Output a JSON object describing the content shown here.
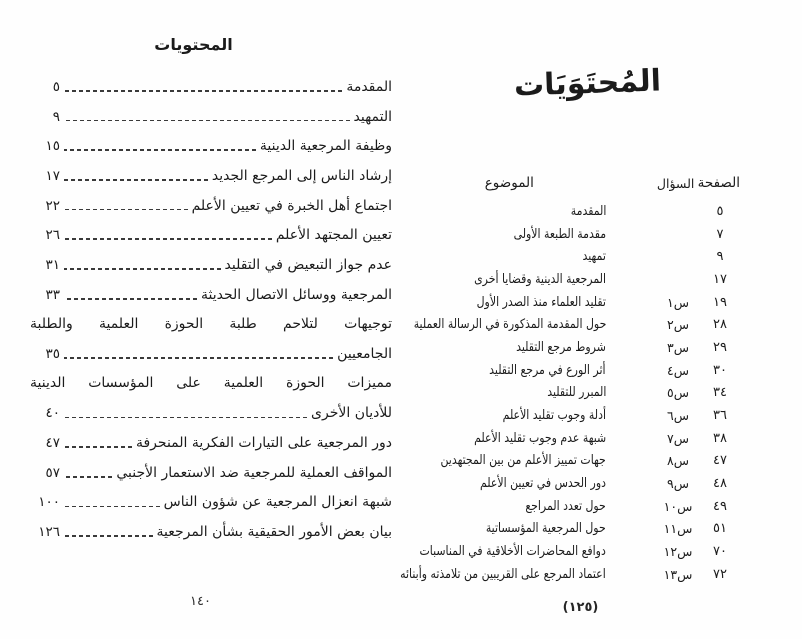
{
  "page_left": {
    "title": "المحتويات",
    "entries": [
      {
        "text": "المقدمة",
        "page": "٥",
        "justify": false
      },
      {
        "text": "التمهيد",
        "page": "٩",
        "justify": false
      },
      {
        "text": "وظيفة المرجعية الدينية",
        "page": "١٥",
        "justify": false
      },
      {
        "text": "إرشاد الناس إلى المرجع الجديد",
        "page": "١٧",
        "justify": false
      },
      {
        "text": "اجتماع أهل الخبرة في تعيين الأعلم",
        "page": "٢٢",
        "justify": false
      },
      {
        "text": "تعيين المجتهد الأعلم",
        "page": "٢٦",
        "justify": false
      },
      {
        "text": "عدم جواز التبعيض في التقليد",
        "page": "٣١",
        "justify": false
      },
      {
        "text": "المرجعية ووسائل الاتصال الحديثة",
        "page": "٣٣",
        "justify": false
      },
      {
        "text": "توجيهات لتلاحم طلبة الحوزة العلمية والطلبة",
        "page": "",
        "justify": true
      },
      {
        "text": "الجامعيين",
        "page": "٣٥",
        "justify": false
      },
      {
        "text": "مميزات الحوزة العلمية على المؤسسات الدينية",
        "page": "",
        "justify": true
      },
      {
        "text": "للأديان الأخرى",
        "page": "٤٠",
        "justify": false
      },
      {
        "text": "دور المرجعية على التيارات الفكرية المنحرفة",
        "page": "٤٧",
        "justify": false
      },
      {
        "text": "المواقف العملية للمرجعية ضد الاستعمار الأجنبي",
        "page": "٥٧",
        "justify": false
      },
      {
        "text": "شبهة انعزال المرجعية عن شؤون الناس",
        "page": "١٠٠",
        "justify": false
      },
      {
        "text": "بيان بعض الأمور الحقيقية بشأن المرجعية",
        "page": "١٢٦",
        "justify": false
      }
    ],
    "folio": "١٤٠"
  },
  "page_right": {
    "title": "المُحتَوَيَات",
    "table": {
      "headers": {
        "page": "الصفحة",
        "question": "السؤال",
        "subject": "الموضوع"
      },
      "rows": [
        {
          "page": "٥",
          "question": "",
          "subject": "المقدمة"
        },
        {
          "page": "٧",
          "question": "",
          "subject": "مقدمة الطبعة الأولى"
        },
        {
          "page": "٩",
          "question": "",
          "subject": "تمهيد"
        },
        {
          "page": "١٧",
          "question": "",
          "subject": "المرجعية الدينية وقضايا أخرى"
        },
        {
          "page": "١٩",
          "question": "س١",
          "subject": "تقليد العلماء منذ الصدر الأول"
        },
        {
          "page": "٢٨",
          "question": "س٢",
          "subject": "حول المقدمة المذكورة في الرسالة العملية"
        },
        {
          "page": "٢٩",
          "question": "س٣",
          "subject": "شروط مرجع التقليد"
        },
        {
          "page": "٣٠",
          "question": "س٤",
          "subject": "أثر الورع في مرجع التقليد"
        },
        {
          "page": "٣٤",
          "question": "س٥",
          "subject": "المبرر للتقليد"
        },
        {
          "page": "٣٦",
          "question": "س٦",
          "subject": "أدلة وجوب تقليد الأعلم"
        },
        {
          "page": "٣٨",
          "question": "س٧",
          "subject": "شبهة عدم وجوب تقليد الأعلم"
        },
        {
          "page": "٤٧",
          "question": "س٨",
          "subject": "جهات تمييز الأعلم من بين المجتهدين"
        },
        {
          "page": "٤٨",
          "question": "س٩",
          "subject": "دور الحدس في تعيين الأعلم"
        },
        {
          "page": "٤٩",
          "question": "س١٠",
          "subject": "حول تعدد المراجع"
        },
        {
          "page": "٥١",
          "question": "س١١",
          "subject": "حول المرجعية المؤسساتية"
        },
        {
          "page": "٧٠",
          "question": "س١٢",
          "subject": "دوافع المحاضرات الأخلاقية في المناسبات"
        },
        {
          "page": "٧٢",
          "question": "س١٣",
          "subject": "اعتماد المرجع على القريبين من تلامذته وأبنائه"
        }
      ]
    },
    "folio": "(١٢٥)"
  }
}
